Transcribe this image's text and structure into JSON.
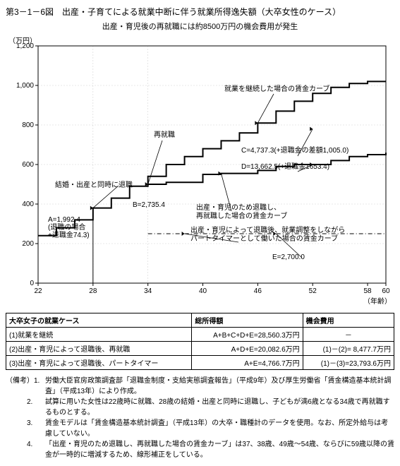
{
  "title": "第3－1－6図　出産・子育てによる就業中断に伴う就業所得逸失額（大卒女性のケース）",
  "subtitle": "出産・育児後の再就職には約8500万円の機会費用が発生",
  "y_axis_label": "（万円）",
  "x_axis_label": "（年齢）",
  "chart": {
    "xlim": [
      22,
      60
    ],
    "ylim": [
      0,
      1200
    ],
    "xticks": [
      22,
      28,
      34,
      40,
      46,
      52,
      58,
      60
    ],
    "yticks": [
      0,
      200,
      400,
      600,
      800,
      1000,
      1200
    ],
    "tick_fontsize": 10,
    "axis_color": "#000000",
    "grid_color": "#808080",
    "legend_fontsize": 10,
    "series": {
      "continuous": {
        "color": "#000000",
        "width": 2.0,
        "style": "solid",
        "data": [
          [
            22,
            240
          ],
          [
            24,
            280
          ],
          [
            26,
            320
          ],
          [
            28,
            380
          ],
          [
            30,
            430
          ],
          [
            32,
            490
          ],
          [
            34,
            540
          ],
          [
            36,
            600
          ],
          [
            38,
            640
          ],
          [
            40,
            680
          ],
          [
            42,
            720
          ],
          [
            44,
            760
          ],
          [
            46,
            810
          ],
          [
            48,
            870
          ],
          [
            50,
            920
          ],
          [
            52,
            960
          ],
          [
            54,
            990
          ],
          [
            56,
            1010
          ],
          [
            58,
            1020
          ],
          [
            60,
            1020
          ]
        ]
      },
      "reemploy": {
        "color": "#000000",
        "width": 2.0,
        "style": "solid",
        "data": [
          [
            34,
            500
          ],
          [
            36,
            510
          ],
          [
            38,
            510
          ],
          [
            40,
            550
          ],
          [
            42,
            555
          ],
          [
            44,
            555
          ],
          [
            46,
            570
          ],
          [
            48,
            590
          ],
          [
            50,
            600
          ],
          [
            52,
            600
          ],
          [
            54,
            620
          ],
          [
            56,
            640
          ],
          [
            58,
            650
          ],
          [
            60,
            660
          ]
        ]
      },
      "parttimer": {
        "color": "#000000",
        "width": 1.0,
        "style": "dashdot",
        "data": [
          [
            34,
            250
          ],
          [
            60,
            250
          ]
        ]
      },
      "drop": {
        "color": "#000000",
        "width": 1.0,
        "style": "solid",
        "data": [
          [
            28,
            380
          ],
          [
            28,
            0
          ]
        ]
      }
    }
  },
  "annotations": {
    "continuous_label": "就業を継続した場合の賃金カーブ",
    "reemploy_event": "再就職",
    "marriage_quit": "結婚・出産と同時に退職",
    "reemploy_label1": "出産・育児のため退職し、",
    "reemploy_label2": "再就職した場合の賃金カーブ",
    "parttimer_label1": "出産・育児によって退職後、就業調整をしながら",
    "parttimer_label2": "パートタイマーとして働いた場合の賃金カーブ",
    "A": "A=1,992.4",
    "A2": "(退職の場合",
    "A3": "+退職金74.3)",
    "B": "B=2,735.4",
    "C": "C=4,737.3(+退職金の差額1,005.0)",
    "D": "D=13,662.5(+退職金1653.4)",
    "E": "E=2,700.0"
  },
  "table": {
    "head": [
      "大卒女子の就業ケース",
      "総所得額",
      "機会費用"
    ],
    "rows": [
      [
        "(1)就業を継続",
        "A+B+C+D+E=28,560.3万円",
        "－"
      ],
      [
        "(2)出産・育児によって退職後、再就職",
        "A+D+E=20,082.6万円",
        "(1)－(2)= 8,477.7万円"
      ],
      [
        "(3)出産・育児によって退職後、パートタイマー",
        "A+E=4,766.7万円",
        "(1)－(3)=23,793.6万円"
      ]
    ]
  },
  "notes": [
    [
      "（備考）1.",
      "労働大臣官房政策調査部「退職金制度・支給実態調査報告」（平成9年）及び厚生労働省「賃金構造基本統計調査」（平成13年）により作成。"
    ],
    [
      "　　　2.",
      "試算に用いた女性は22歳時に就職、28歳の結婚・出産と同時に退職し、子どもが満6歳となる34歳で再就職するものとする。"
    ],
    [
      "　　　3.",
      "賃金モデルは「賃金構造基本統計調査」（平成13年）の大卒・職種計のデータを使用。なお、所定外給与は考慮していない。"
    ],
    [
      "　　　4.",
      "「出産・育児のため退職し、再就職した場合の賃金カーブ」は37、38歳、49歳～54歳、ならびに59歳以降の賃金が一時的に増減するため、線形補正をしている。"
    ]
  ]
}
